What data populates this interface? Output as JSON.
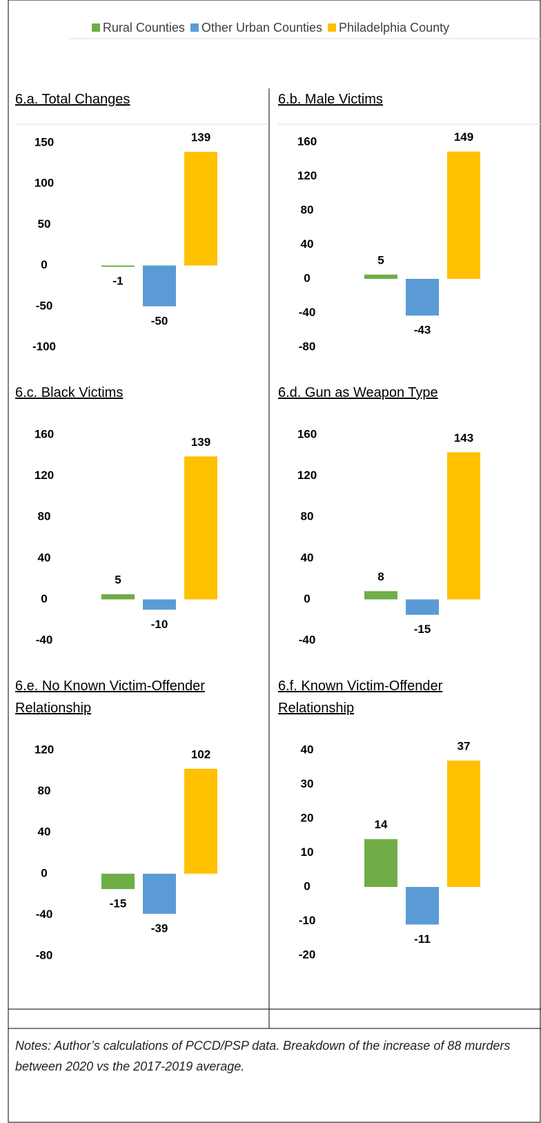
{
  "legend": [
    {
      "name": "Rural Counties",
      "color": "#70ad47"
    },
    {
      "name": "Other Urban Counties",
      "color": "#5b9bd5"
    },
    {
      "name": "Philadelphia County",
      "color": "#ffc000"
    }
  ],
  "chart_data": [
    {
      "type": "bar",
      "title": "6.a. Total Changes",
      "values": [
        -1,
        -50,
        139
      ],
      "ylim": [
        -100,
        150
      ],
      "yticks": [
        -100,
        -50,
        0,
        50,
        100,
        150
      ]
    },
    {
      "type": "bar",
      "title": "6.b. Male Victims",
      "values": [
        5,
        -43,
        149
      ],
      "ylim": [
        -80,
        160
      ],
      "yticks": [
        -80,
        -40,
        0,
        40,
        80,
        120,
        160
      ]
    },
    {
      "type": "bar",
      "title": "6.c. Black Victims",
      "values": [
        5,
        -10,
        139
      ],
      "ylim": [
        -40,
        160
      ],
      "yticks": [
        -40,
        0,
        40,
        80,
        120,
        160
      ]
    },
    {
      "type": "bar",
      "title": "6.d. Gun as Weapon Type",
      "values": [
        8,
        -15,
        143
      ],
      "ylim": [
        -40,
        160
      ],
      "yticks": [
        -40,
        0,
        40,
        80,
        120,
        160
      ]
    },
    {
      "type": "bar",
      "title": "6.e. No Known Victim-Offender Relationship",
      "values": [
        -15,
        -39,
        102
      ],
      "ylim": [
        -80,
        120
      ],
      "yticks": [
        -80,
        -40,
        0,
        40,
        80,
        120
      ]
    },
    {
      "type": "bar",
      "title": "6.f. Known Victim-Offender Relationship",
      "values": [
        14,
        -11,
        37
      ],
      "ylim": [
        -20,
        40
      ],
      "yticks": [
        -20,
        -10,
        0,
        10,
        20,
        30,
        40
      ]
    }
  ],
  "notes": "Notes: Author’s calculations of PCCD/PSP data. Breakdown of the increase of 88 murders between 2020 vs the 2017-2019 average."
}
